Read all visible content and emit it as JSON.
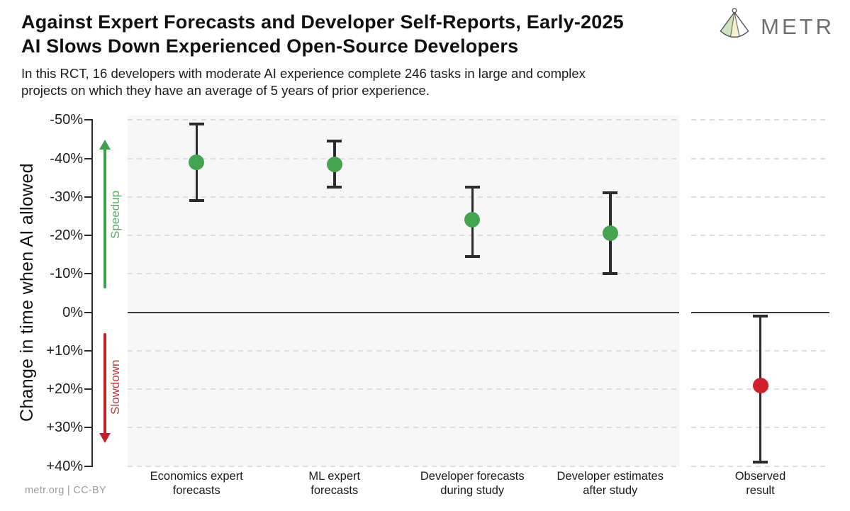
{
  "header": {
    "title_line1": "Against Expert Forecasts and Developer Self-Reports, Early-2025",
    "title_line2": "AI Slows Down Experienced Open-Source Developers",
    "subtitle_line1": "In this RCT, 16 developers with moderate AI experience complete 246 tasks in large and complex",
    "subtitle_line2": "projects on which they have an average of 5 years of prior experience.",
    "brand": "METR"
  },
  "footer": {
    "credit": "metr.org | CC-BY"
  },
  "chart_data": {
    "type": "scatter",
    "title": "Against Expert Forecasts and Developer Self-Reports, Early-2025 AI Slows Down Experienced Open-Source Developers",
    "subtitle": "In this RCT, 16 developers with moderate AI experience complete 246 tasks in large and complex projects on which they have an average of 5 years of prior experience.",
    "ylabel": "Change in time when AI allowed",
    "xlabel": "",
    "ylim": [
      -50,
      40
    ],
    "y_axis_inverted_note": "negative (speedup) plotted upward",
    "grid": "dashed horizontal gridlines; solid line at 0%",
    "y_ticks": [
      {
        "value": -50,
        "label": "-50%"
      },
      {
        "value": -40,
        "label": "-40%"
      },
      {
        "value": -30,
        "label": "-30%"
      },
      {
        "value": -20,
        "label": "-20%"
      },
      {
        "value": -10,
        "label": "-10%"
      },
      {
        "value": 0,
        "label": "0%"
      },
      {
        "value": 10,
        "label": "+10%"
      },
      {
        "value": 20,
        "label": "+20%"
      },
      {
        "value": 30,
        "label": "+30%"
      },
      {
        "value": 40,
        "label": "+40%"
      }
    ],
    "annotations": [
      {
        "text": "Speedup",
        "direction": "up",
        "color": "#5bad69",
        "arrow_color": "#3da14c"
      },
      {
        "text": "Slowdown",
        "direction": "down",
        "color": "#c43a35",
        "arrow_color": "#c3202a"
      }
    ],
    "colors": {
      "speedup_point": "#44a551",
      "slowdown_point": "#d2202a",
      "errorbar": "#2b2b2b"
    },
    "points": [
      {
        "label": "Economics expert\nforecasts",
        "mean": -39,
        "ci": [
          -49,
          -29
        ],
        "panel": "main",
        "color": "#44a551"
      },
      {
        "label": "ML expert\nforecasts",
        "mean": -38.5,
        "ci": [
          -44.5,
          -32.5
        ],
        "panel": "main",
        "color": "#44a551"
      },
      {
        "label": "Developer forecasts\nduring study",
        "mean": -24,
        "ci": [
          -32.5,
          -14.5
        ],
        "panel": "main",
        "color": "#44a551"
      },
      {
        "label": "Developer estimates\nafter study",
        "mean": -20.5,
        "ci": [
          -31,
          -10
        ],
        "panel": "main",
        "color": "#44a551"
      },
      {
        "label": "Observed\nresult",
        "mean": 19,
        "ci": [
          1,
          39
        ],
        "panel": "observed",
        "color": "#d2202a"
      }
    ]
  }
}
